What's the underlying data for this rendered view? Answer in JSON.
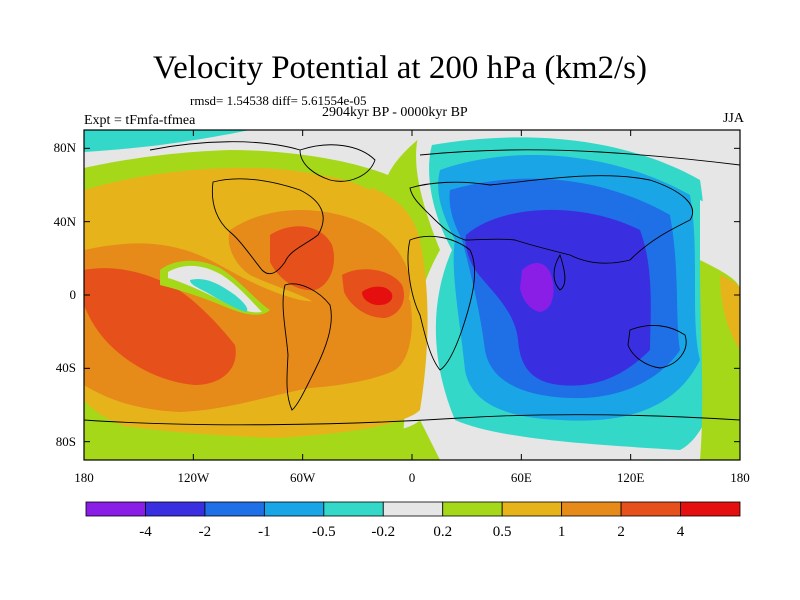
{
  "title": "Velocity Potential at 200 hPa (km2/s)",
  "stats_line": "rmsd= 1.54538 diff= 5.61554e-05",
  "experiment": "Expt = tFmfa-tfmea",
  "period": "2904kyr BP - 0000kyr BP",
  "season": "JJA",
  "y_ticks": [
    {
      "label": "80N",
      "lat": 80
    },
    {
      "label": "40N",
      "lat": 40
    },
    {
      "label": "0",
      "lat": 0
    },
    {
      "label": "40S",
      "lat": -40
    },
    {
      "label": "80S",
      "lat": -80
    }
  ],
  "x_ticks": [
    {
      "label": "180",
      "lon": -180
    },
    {
      "label": "120W",
      "lon": -120
    },
    {
      "label": "60W",
      "lon": -60
    },
    {
      "label": "0",
      "lon": 0
    },
    {
      "label": "60E",
      "lon": 60
    },
    {
      "label": "120E",
      "lon": 120
    },
    {
      "label": "180",
      "lon": 180
    }
  ],
  "colorbar": {
    "colors": [
      "#8a1ee6",
      "#3a2fe0",
      "#1f6fe6",
      "#1aa6e6",
      "#34d8c9",
      "#e6e6e6",
      "#a6d81a",
      "#e6b41a",
      "#e68a1a",
      "#e6501a",
      "#e60f0f"
    ],
    "labels": [
      "-4",
      "-2",
      "-1",
      "-0.5",
      "-0.2",
      "0.2",
      "0.5",
      "1",
      "2",
      "4"
    ]
  }
}
